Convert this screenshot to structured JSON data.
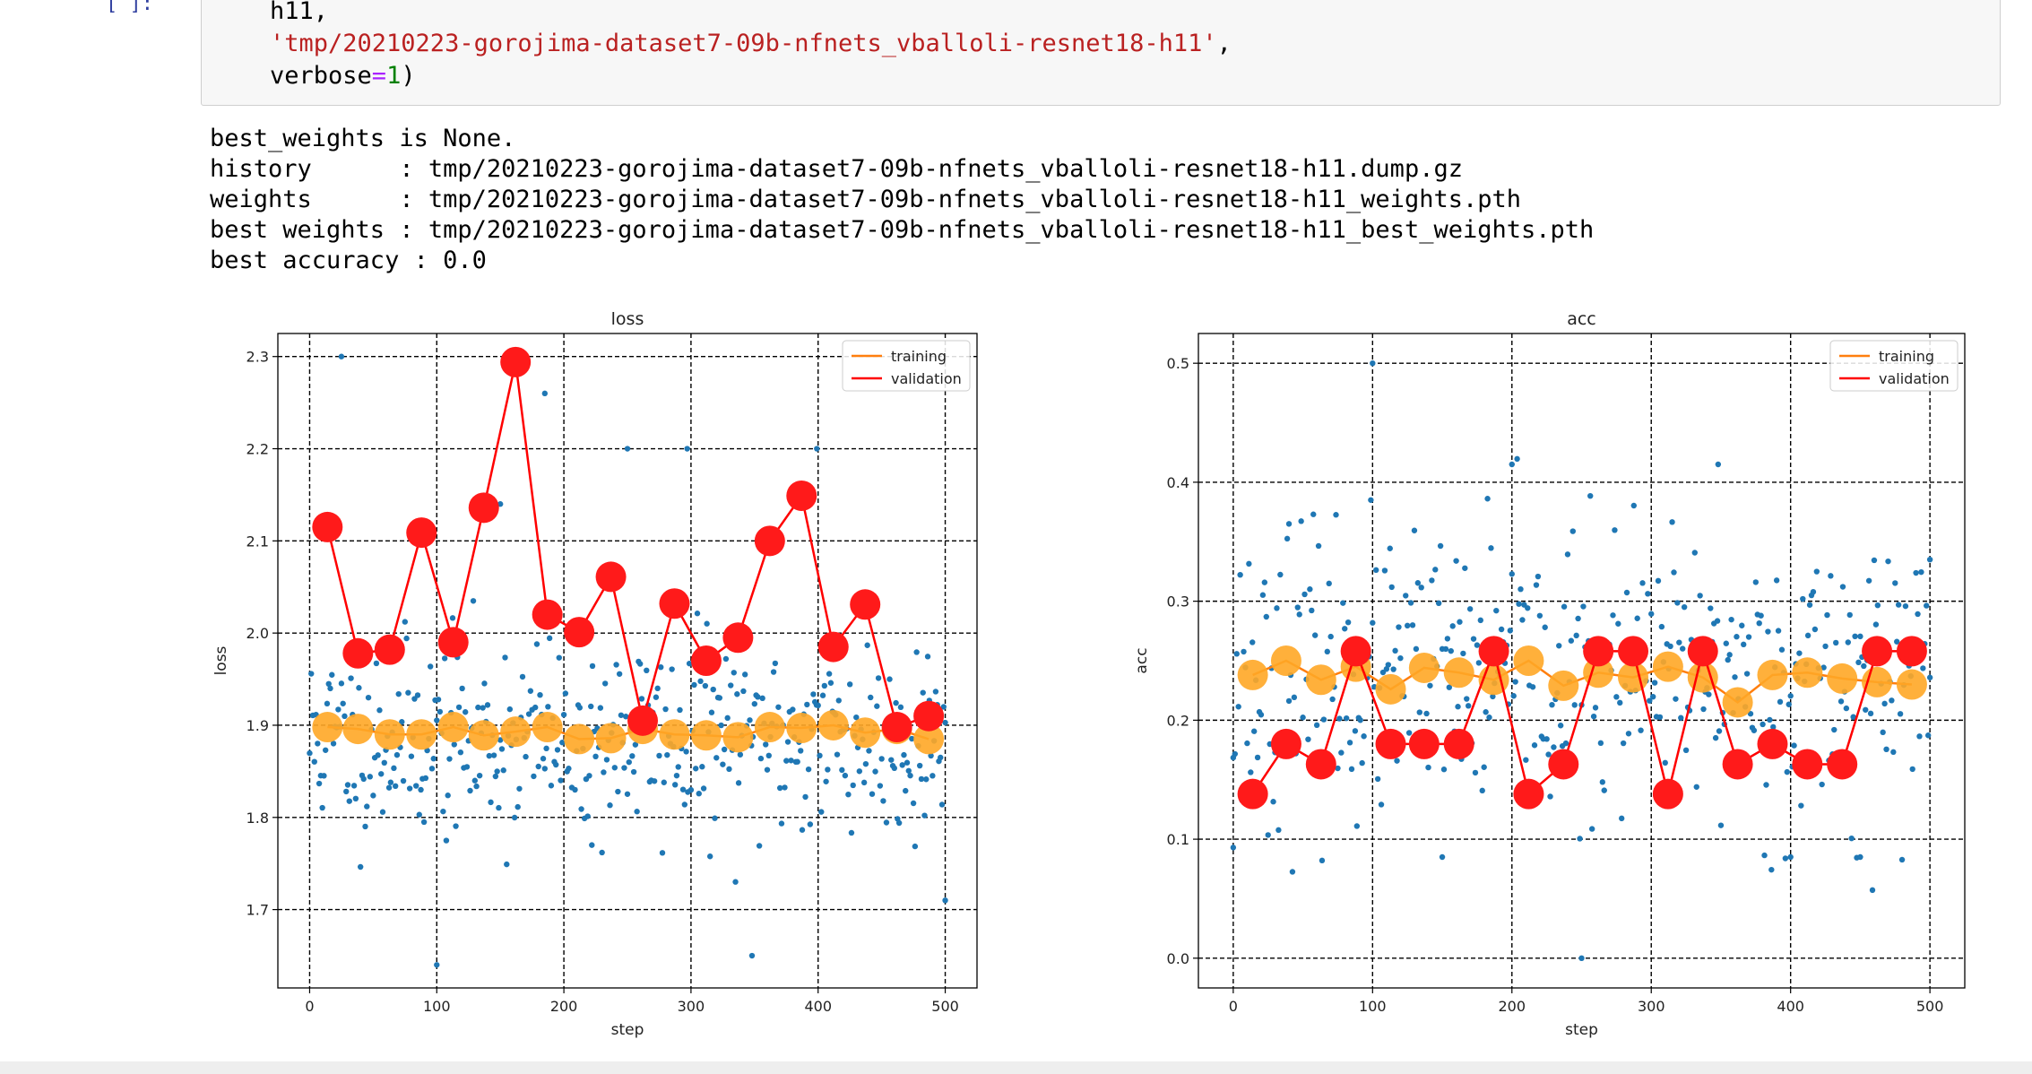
{
  "cell": {
    "prompt": "[ ]:",
    "lines": [
      {
        "pre": "",
        "plain": "h11,",
        "string": "",
        "op": "",
        "num": "",
        "post": ""
      },
      {
        "pre": "",
        "plain": "",
        "string": "'tmp/20210223-gorojima-dataset7-09b-nfnets_vballoli-resnet18-h11'",
        "op": "",
        "num": "",
        "post": ","
      },
      {
        "pre": "",
        "plain": "verbose",
        "string": "",
        "op": "=",
        "num": "1",
        "post": ")"
      }
    ]
  },
  "output": {
    "lines": [
      "best_weights is None.",
      "history      : tmp/20210223-gorojima-dataset7-09b-nfnets_vballoli-resnet18-h11.dump.gz",
      "weights      : tmp/20210223-gorojima-dataset7-09b-nfnets_vballoli-resnet18-h11_weights.pth",
      "best weights : tmp/20210223-gorojima-dataset7-09b-nfnets_vballoli-resnet18-h11_best_weights.pth",
      "best accuracy : 0.0"
    ]
  },
  "colors": {
    "scatter": "#1f77b4",
    "training": "#ff7f0e",
    "training_marker": "#ffa726",
    "validation": "#ff0000",
    "validation_marker": "#ff1a1a"
  },
  "chart_data": [
    {
      "type": "line",
      "title": "loss",
      "xlabel": "step",
      "ylabel": "loss",
      "xlim": [
        -25,
        525
      ],
      "ylim": [
        1.615,
        2.325
      ],
      "xticks": [
        0,
        100,
        200,
        300,
        400,
        500
      ],
      "yticks": [
        1.7,
        1.8,
        1.9,
        2.0,
        2.1,
        2.2,
        2.3
      ],
      "grid": true,
      "legend_position": "upper right",
      "legend": [
        "training",
        "validation"
      ],
      "scatter_seed": 11,
      "scatter_center": 1.885,
      "scatter_spread": 0.055,
      "scatter_outliers": [
        [
          25,
          2.3
        ],
        [
          100,
          1.64
        ],
        [
          185,
          2.26
        ],
        [
          250,
          2.2
        ],
        [
          297,
          2.2
        ],
        [
          348,
          1.65
        ],
        [
          399,
          2.2
        ],
        [
          500,
          1.71
        ],
        [
          150,
          2.14
        ],
        [
          222,
          1.77
        ]
      ],
      "series": [
        {
          "name": "training",
          "x": [
            14,
            38,
            63,
            88,
            113,
            137,
            162,
            187,
            212,
            237,
            262,
            287,
            312,
            337,
            362,
            387,
            412,
            437,
            462,
            487
          ],
          "values": [
            1.898,
            1.896,
            1.89,
            1.89,
            1.898,
            1.889,
            1.893,
            1.898,
            1.885,
            1.886,
            1.896,
            1.89,
            1.889,
            1.887,
            1.898,
            1.897,
            1.9,
            1.892,
            1.896,
            1.885
          ]
        },
        {
          "name": "validation",
          "x": [
            14,
            38,
            63,
            88,
            113,
            137,
            162,
            187,
            212,
            237,
            262,
            287,
            312,
            337,
            362,
            387,
            412,
            437,
            462,
            487
          ],
          "values": [
            2.115,
            1.978,
            1.982,
            2.109,
            1.99,
            2.136,
            2.294,
            2.02,
            2.001,
            2.061,
            1.905,
            2.032,
            1.97,
            1.995,
            2.1,
            2.149,
            1.985,
            2.031,
            1.898,
            1.91
          ]
        }
      ]
    },
    {
      "type": "line",
      "title": "acc",
      "xlabel": "step",
      "ylabel": "acc",
      "xlim": [
        -25,
        525
      ],
      "ylim": [
        -0.025,
        0.525
      ],
      "xticks": [
        0,
        100,
        200,
        300,
        400,
        500
      ],
      "yticks": [
        0.0,
        0.1,
        0.2,
        0.3,
        0.4,
        0.5
      ],
      "grid": true,
      "legend_position": "upper right",
      "legend": [
        "training",
        "validation"
      ],
      "scatter_seed": 23,
      "scatter_center": 0.235,
      "scatter_spread": 0.06,
      "scatter_outliers": [
        [
          0,
          0.093
        ],
        [
          100,
          0.5
        ],
        [
          200,
          0.415
        ],
        [
          250,
          0.0
        ],
        [
          348,
          0.415
        ],
        [
          500,
          0.335
        ],
        [
          150,
          0.085
        ],
        [
          400,
          0.085
        ],
        [
          450,
          0.085
        ],
        [
          40,
          0.365
        ]
      ],
      "series": [
        {
          "name": "training",
          "x": [
            14,
            38,
            63,
            88,
            113,
            137,
            162,
            187,
            212,
            237,
            262,
            287,
            312,
            337,
            362,
            387,
            412,
            437,
            462,
            487
          ],
          "values": [
            0.238,
            0.25,
            0.234,
            0.245,
            0.226,
            0.244,
            0.24,
            0.234,
            0.25,
            0.229,
            0.24,
            0.236,
            0.245,
            0.236,
            0.215,
            0.238,
            0.24,
            0.235,
            0.232,
            0.23
          ]
        },
        {
          "name": "validation",
          "x": [
            14,
            38,
            63,
            88,
            113,
            137,
            162,
            187,
            212,
            237,
            262,
            287,
            312,
            337,
            362,
            387,
            412,
            437,
            462,
            487
          ],
          "values": [
            0.138,
            0.18,
            0.163,
            0.258,
            0.18,
            0.18,
            0.18,
            0.258,
            0.138,
            0.163,
            0.258,
            0.258,
            0.138,
            0.258,
            0.163,
            0.18,
            0.163,
            0.163,
            0.258,
            0.258
          ]
        }
      ]
    }
  ]
}
